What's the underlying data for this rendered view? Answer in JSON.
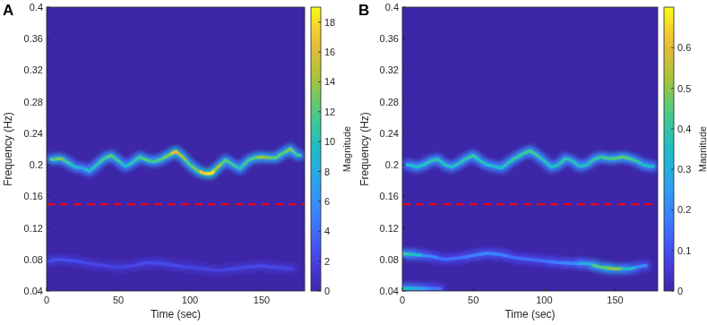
{
  "chart_data": [
    {
      "type": "heatmap",
      "panel_label": "A",
      "xlabel": "Time (sec)",
      "ylabel": "Frequency (Hz)",
      "xlim": [
        0,
        180
      ],
      "xticks": [
        0,
        50,
        100,
        150
      ],
      "ylim": [
        0.04,
        0.4
      ],
      "yticks": [
        0.04,
        0.08,
        0.12,
        0.16,
        0.2,
        0.24,
        0.28,
        0.32,
        0.36,
        0.4
      ],
      "colorbar": {
        "label": "Magnitude",
        "lim": [
          0,
          19
        ],
        "ticks": [
          0,
          2,
          4,
          6,
          8,
          10,
          12,
          14,
          16,
          18
        ]
      },
      "reference_line": {
        "value": 0.15,
        "color": "#ff0000",
        "line_style": "dashed"
      },
      "ridges": [
        {
          "x": [
            5,
            10,
            15,
            20,
            25,
            30,
            35,
            40,
            45,
            50,
            55,
            60,
            65,
            70,
            75,
            80,
            85,
            90,
            95,
            100,
            105,
            110,
            115,
            120,
            125,
            130,
            135,
            140,
            145,
            150,
            155,
            160,
            165,
            170,
            175
          ],
          "values": [
            0.207,
            0.208,
            0.203,
            0.197,
            0.196,
            0.192,
            0.2,
            0.208,
            0.212,
            0.205,
            0.198,
            0.203,
            0.21,
            0.206,
            0.204,
            0.207,
            0.212,
            0.217,
            0.21,
            0.2,
            0.193,
            0.189,
            0.189,
            0.198,
            0.206,
            0.2,
            0.195,
            0.205,
            0.209,
            0.21,
            0.209,
            0.209,
            0.215,
            0.22,
            0.212
          ],
          "magnitude": [
            12,
            13,
            11,
            9,
            8,
            9,
            10,
            11,
            12,
            11,
            9,
            10,
            11,
            12,
            11,
            12,
            13,
            16,
            14,
            12,
            13,
            17,
            18,
            14,
            12,
            11,
            10,
            11,
            12,
            14,
            13,
            12,
            12,
            13,
            11
          ]
        },
        {
          "x": [
            0,
            10,
            20,
            30,
            40,
            50,
            60,
            70,
            80,
            90,
            100,
            110,
            120,
            130,
            140,
            150,
            160,
            170
          ],
          "values": [
            0.078,
            0.08,
            0.078,
            0.075,
            0.072,
            0.07,
            0.072,
            0.076,
            0.075,
            0.072,
            0.07,
            0.068,
            0.066,
            0.068,
            0.07,
            0.072,
            0.07,
            0.068
          ],
          "magnitude": [
            2.5,
            2.8,
            2.6,
            2.4,
            2.2,
            2,
            2.2,
            2.5,
            2.6,
            2.4,
            2.2,
            2,
            2,
            2.2,
            2.4,
            2.5,
            2.3,
            2.2
          ]
        }
      ]
    },
    {
      "type": "heatmap",
      "panel_label": "B",
      "xlabel": "Time (sec)",
      "ylabel": "Frequency (Hz)",
      "xlim": [
        0,
        180
      ],
      "xticks": [
        0,
        50,
        100,
        150
      ],
      "ylim": [
        0.04,
        0.4
      ],
      "yticks": [
        0.04,
        0.08,
        0.12,
        0.16,
        0.2,
        0.24,
        0.28,
        0.32,
        0.36,
        0.4
      ],
      "colorbar": {
        "label": "Magnitude",
        "lim": [
          0,
          0.7
        ],
        "ticks": [
          0,
          0.1,
          0.2,
          0.3,
          0.4,
          0.5,
          0.6
        ]
      },
      "reference_line": {
        "value": 0.15,
        "color": "#ff0000",
        "line_style": "dashed"
      },
      "ridges": [
        {
          "x": [
            5,
            10,
            15,
            20,
            25,
            30,
            35,
            40,
            45,
            50,
            55,
            60,
            65,
            70,
            75,
            80,
            85,
            90,
            95,
            100,
            105,
            110,
            115,
            120,
            125,
            130,
            135,
            140,
            145,
            150,
            155,
            160,
            165,
            170,
            175
          ],
          "values": [
            0.2,
            0.197,
            0.2,
            0.205,
            0.207,
            0.2,
            0.197,
            0.202,
            0.208,
            0.212,
            0.205,
            0.2,
            0.198,
            0.196,
            0.203,
            0.209,
            0.214,
            0.218,
            0.212,
            0.205,
            0.197,
            0.2,
            0.208,
            0.205,
            0.198,
            0.2,
            0.207,
            0.21,
            0.208,
            0.208,
            0.21,
            0.208,
            0.205,
            0.2,
            0.198
          ],
          "magnitude": [
            0.33,
            0.35,
            0.36,
            0.37,
            0.38,
            0.36,
            0.35,
            0.36,
            0.38,
            0.4,
            0.37,
            0.35,
            0.34,
            0.35,
            0.37,
            0.39,
            0.4,
            0.42,
            0.4,
            0.37,
            0.35,
            0.36,
            0.38,
            0.37,
            0.35,
            0.36,
            0.38,
            0.4,
            0.42,
            0.44,
            0.45,
            0.44,
            0.4,
            0.36,
            0.34
          ]
        },
        {
          "x": [
            0,
            10,
            20,
            30,
            40,
            50,
            60,
            70,
            80,
            90,
            100,
            110,
            120,
            130,
            140,
            150,
            160,
            170
          ],
          "values": [
            0.087,
            0.086,
            0.084,
            0.08,
            0.082,
            0.085,
            0.088,
            0.086,
            0.082,
            0.08,
            0.078,
            0.076,
            0.075,
            0.075,
            0.07,
            0.068,
            0.068,
            0.072
          ],
          "magnitude": [
            0.4,
            0.35,
            0.2,
            0.15,
            0.15,
            0.18,
            0.2,
            0.18,
            0.15,
            0.15,
            0.15,
            0.18,
            0.2,
            0.3,
            0.45,
            0.5,
            0.35,
            0.2
          ]
        },
        {
          "x": [
            0,
            5,
            10,
            15,
            20,
            25
          ],
          "values": [
            0.043,
            0.043,
            0.043,
            0.043,
            0.043,
            0.043
          ],
          "magnitude": [
            0.35,
            0.35,
            0.3,
            0.25,
            0.2,
            0.15
          ]
        }
      ]
    }
  ]
}
